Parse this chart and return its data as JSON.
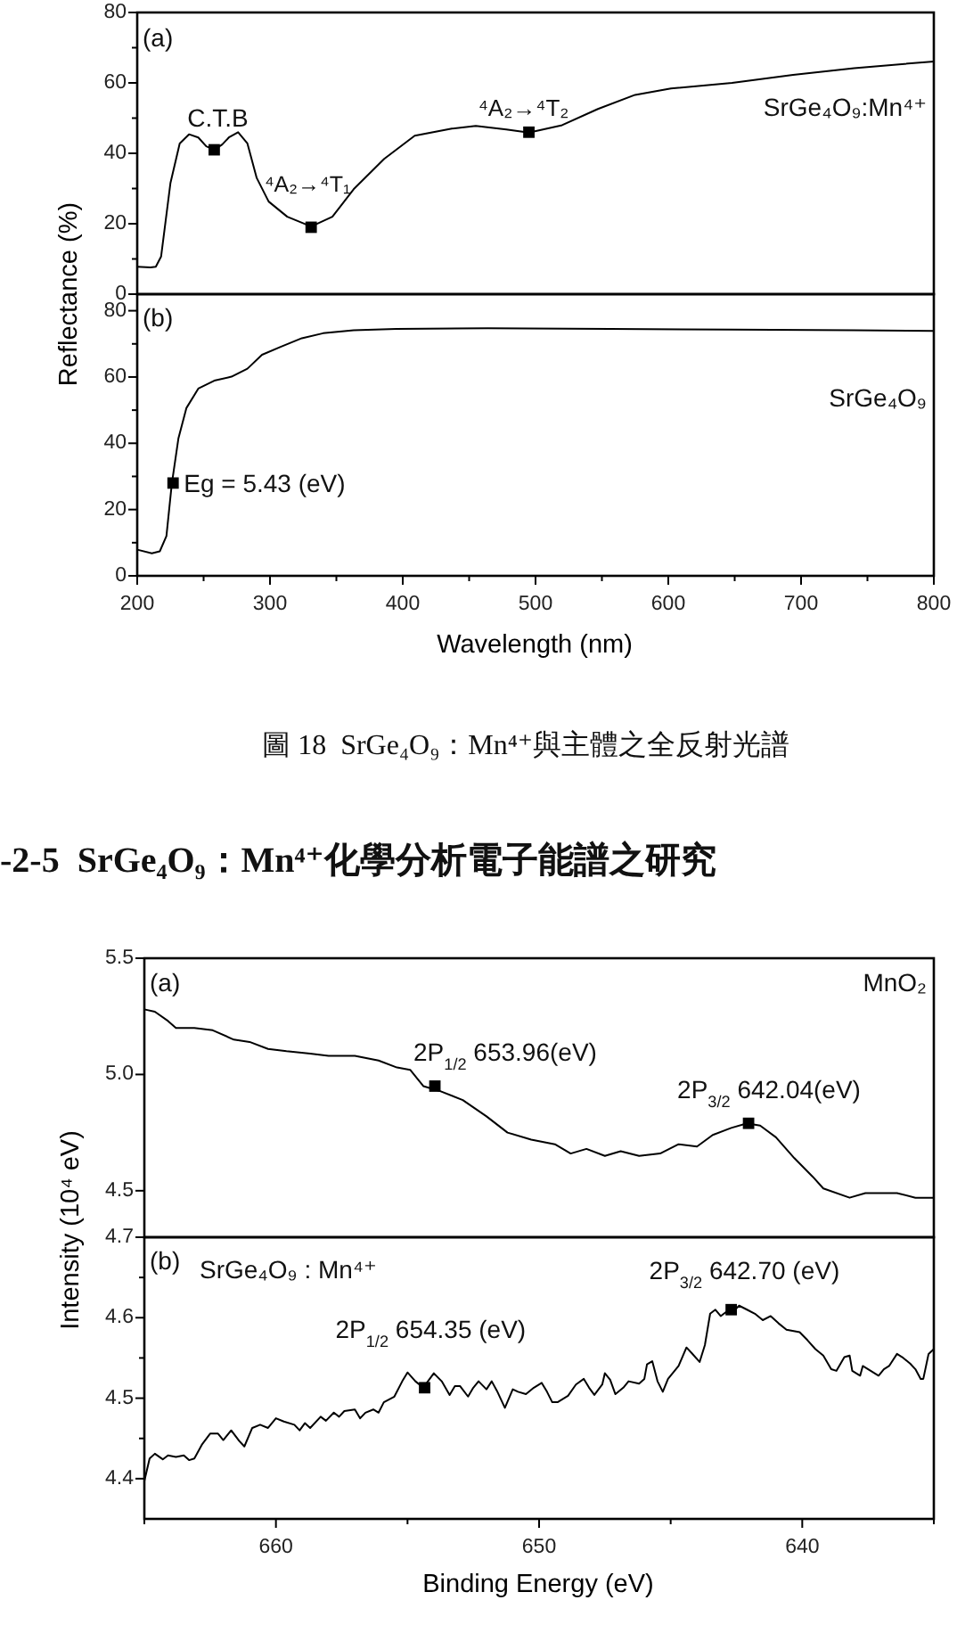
{
  "chart_data": [
    {
      "type": "line",
      "ylabel": "Reflectance (%)",
      "annotations": [
        "(a)",
        {
          "text": "C.T.B",
          "x": 258,
          "y": 41
        },
        {
          "text": "⁴A₂→⁴T₁",
          "x": 331,
          "y": 19
        },
        {
          "text": "⁴A₂→⁴T₂",
          "x": 495,
          "y": 46
        },
        "SrGe₄O₉:Mn⁴⁺"
      ],
      "series": [
        {
          "color": "#000000",
          "x": [
            200,
            210,
            214,
            218,
            225,
            232,
            239,
            246,
            252,
            258,
            264,
            269,
            276,
            283,
            290,
            299,
            313,
            331,
            347,
            363,
            386,
            409,
            437,
            455,
            478,
            495,
            520,
            547,
            575,
            602,
            648,
            694,
            740,
            800
          ],
          "values": [
            7.8,
            7.6,
            7.8,
            10.7,
            31.5,
            42.8,
            45.4,
            44.5,
            42,
            41,
            42.5,
            44.5,
            46,
            42.8,
            33,
            26.3,
            22,
            19.2,
            22,
            29.8,
            38.4,
            45,
            47,
            47.8,
            46.8,
            45.9,
            48,
            52.6,
            56.6,
            58.4,
            60,
            62.3,
            64.2,
            66.1
          ]
        },
        {
          "type": "scatter",
          "marker": "square",
          "color": "#000000",
          "x": [
            258,
            331,
            495
          ],
          "values": [
            41,
            19,
            46
          ]
        }
      ],
      "xlim": [
        200,
        800
      ],
      "ylim": [
        0,
        80
      ],
      "yticks": [
        0,
        {
          "value": 10,
          "label": null
        },
        20,
        {
          "value": 30,
          "label": null
        },
        40,
        {
          "value": 50,
          "label": null
        },
        60,
        {
          "value": 70,
          "label": null
        },
        80
      ],
      "tick_labels": "y"
    },
    {
      "type": "line",
      "xlabel": "Wavelength (nm)",
      "annotations": [
        "(b)",
        {
          "text": "Eg = 5.43 (eV)",
          "x": 227,
          "y": 28
        },
        "SrGe₄O₉",
        "圖 18  SrGe₄O₉：Mn⁴⁺與主體之全反射光譜"
      ],
      "series": [
        {
          "color": "#000000",
          "x": [
            200,
            211,
            217,
            222,
            226,
            231,
            237,
            246,
            258,
            271,
            283,
            294,
            308,
            324,
            340,
            363,
            395,
            464,
            556,
            648,
            740,
            800
          ],
          "values": [
            7.9,
            6.8,
            7.4,
            12,
            27.6,
            41.4,
            50.6,
            56.5,
            58.9,
            60.1,
            62.5,
            66.7,
            69.1,
            71.7,
            73.2,
            74.1,
            74.5,
            74.7,
            74.5,
            74.3,
            74.1,
            73.9
          ]
        },
        {
          "type": "scatter",
          "marker": "square",
          "color": "#000000",
          "x": [
            227
          ],
          "values": [
            28
          ]
        }
      ],
      "xlim": [
        200,
        800
      ],
      "xticks": [
        200,
        {
          "value": 250,
          "label": null
        },
        300,
        {
          "value": 350,
          "label": null
        },
        400,
        {
          "value": 450,
          "label": null
        },
        500,
        {
          "value": 550,
          "label": null
        },
        600,
        {
          "value": 650,
          "label": null
        },
        700,
        {
          "value": 750,
          "label": null
        },
        800
      ],
      "ylim": [
        0,
        85
      ],
      "yticks": [
        0,
        {
          "value": 10,
          "label": null
        },
        20,
        {
          "value": 30,
          "label": null
        },
        40,
        {
          "value": 50,
          "label": null
        },
        60,
        {
          "value": 70,
          "label": null
        },
        80
      ]
    },
    {
      "type": "line",
      "ylabel": "Intensity (10⁴ eV)",
      "annotations": [
        "-2-5  SrGe₄O₉：Mn⁴⁺化學分析電子能譜之研究",
        "(a)",
        "MnO₂",
        {
          "text": "2P$_{1/2}$ 653.96(eV)",
          "x": 653.96,
          "y": 4.95
        },
        {
          "text": "2P$_{3/2}$ 642.04(eV)",
          "x": 642.04,
          "y": 4.79
        }
      ],
      "series": [
        {
          "color": "#000000",
          "x": [
            665,
            664.6,
            664.1,
            663.8,
            663.1,
            662.4,
            661.6,
            661,
            660.3,
            659.6,
            658.7,
            658,
            657,
            656.1,
            655.4,
            654.9,
            654.4,
            653.8,
            652.9,
            652,
            651.2,
            650.3,
            649.4,
            648.8,
            648.2,
            647.5,
            646.9,
            646.2,
            645.4,
            644.7,
            644,
            643.4,
            642.7,
            642.1,
            641.6,
            641,
            640.3,
            639.6,
            639.2,
            638.2,
            637.6,
            636.4,
            635.7,
            635
          ],
          "values": [
            5.28,
            5.27,
            5.23,
            5.2,
            5.2,
            5.19,
            5.15,
            5.14,
            5.11,
            5.1,
            5.09,
            5.08,
            5.08,
            5.06,
            5.03,
            5.02,
            4.95,
            4.93,
            4.89,
            4.82,
            4.75,
            4.72,
            4.7,
            4.66,
            4.68,
            4.65,
            4.67,
            4.65,
            4.66,
            4.7,
            4.69,
            4.74,
            4.77,
            4.79,
            4.78,
            4.73,
            4.64,
            4.56,
            4.51,
            4.47,
            4.49,
            4.49,
            4.47,
            4.47
          ]
        },
        {
          "type": "scatter",
          "marker": "square",
          "color": "#000000",
          "x": [
            653.96,
            642.04
          ],
          "values": [
            4.95,
            4.79
          ]
        }
      ],
      "xlim": [
        665,
        635
      ],
      "ylim": [
        4.3,
        5.5
      ],
      "yticks": [
        4.5,
        {
          "value": 5,
          "label": "5.0"
        },
        5.5
      ],
      "tick_labels": "y"
    },
    {
      "type": "line",
      "xlabel": "Binding Energy (eV)",
      "annotations": [
        "(b)",
        "SrGe₄O₉ : Mn⁴⁺",
        {
          "text": "2P$_{1/2}$ 654.35 (eV)",
          "x": 654.35,
          "y": 4.513
        },
        {
          "text": "2P$_{3/2}$ 642.70 (eV)",
          "x": 642.7,
          "y": 4.61
        }
      ],
      "series": [
        {
          "color": "#000000",
          "x": [
            665,
            664.8,
            664.6,
            664.3,
            664.1,
            663.8,
            663.5,
            663.3,
            663.1,
            662.8,
            662.5,
            662.2,
            662,
            661.7,
            661.4,
            661.2,
            660.9,
            660.6,
            660.3,
            660,
            659.7,
            659.3,
            659.1,
            658.9,
            658.7,
            658.3,
            658.1,
            657.8,
            657.6,
            657.4,
            657,
            656.8,
            656.6,
            656.3,
            656.1,
            655.9,
            655.5,
            655.2,
            655,
            654.7,
            654.4,
            654.2,
            654,
            653.7,
            653.4,
            653.2,
            653,
            652.7,
            652.5,
            652.3,
            652,
            651.8,
            651.6,
            651.3,
            651,
            650.8,
            650.5,
            650.2,
            649.9,
            649.7,
            649.5,
            649.3,
            648.9,
            648.6,
            648.3,
            648.1,
            647.9,
            647.6,
            647.5,
            647.3,
            647.1,
            646.8,
            646.6,
            646.2,
            646,
            645.9,
            645.7,
            645.5,
            645.3,
            645.1,
            644.7,
            644.4,
            644.2,
            643.9,
            643.7,
            643.5,
            643.3,
            643.1,
            642.9,
            642.7,
            642.4,
            642.1,
            641.8,
            641.5,
            641.2,
            640.9,
            640.6,
            640.1,
            639.8,
            639.5,
            639.2,
            638.9,
            638.7,
            638.4,
            638.2,
            638.1,
            637.8,
            637.7,
            637.4,
            637.1,
            636.9,
            636.7,
            636.4,
            636.2,
            635.9,
            635.7,
            635.5,
            635.4,
            635.2,
            635
          ],
          "values": [
            4.397,
            4.425,
            4.431,
            4.424,
            4.429,
            4.427,
            4.429,
            4.423,
            4.425,
            4.443,
            4.456,
            4.456,
            4.448,
            4.46,
            4.447,
            4.44,
            4.463,
            4.467,
            4.463,
            4.475,
            4.471,
            4.467,
            4.46,
            4.469,
            4.463,
            4.477,
            4.472,
            4.482,
            4.477,
            4.484,
            4.486,
            4.475,
            4.482,
            4.486,
            4.482,
            4.495,
            4.502,
            4.521,
            4.532,
            4.521,
            4.513,
            4.522,
            4.531,
            4.521,
            4.504,
            4.515,
            4.515,
            4.502,
            4.513,
            4.521,
            4.511,
            4.521,
            4.509,
            4.488,
            4.511,
            4.508,
            4.505,
            4.513,
            4.519,
            4.508,
            4.495,
            4.495,
            4.503,
            4.517,
            4.524,
            4.513,
            4.504,
            4.517,
            4.531,
            4.523,
            4.505,
            4.513,
            4.521,
            4.518,
            4.524,
            4.542,
            4.546,
            4.521,
            4.508,
            4.524,
            4.54,
            4.563,
            4.556,
            4.545,
            4.566,
            4.605,
            4.61,
            4.602,
            4.607,
            4.605,
            4.615,
            4.61,
            4.605,
            4.597,
            4.602,
            4.593,
            4.585,
            4.582,
            4.572,
            4.561,
            4.553,
            4.536,
            4.534,
            4.551,
            4.553,
            4.534,
            4.528,
            4.54,
            4.534,
            4.528,
            4.536,
            4.54,
            4.555,
            4.551,
            4.543,
            4.536,
            4.524,
            4.524,
            4.555,
            4.561
          ]
        },
        {
          "type": "scatter",
          "marker": "square",
          "color": "#000000",
          "x": [
            654.35,
            642.7
          ],
          "values": [
            4.513,
            4.61
          ]
        }
      ],
      "xlim": [
        665,
        635
      ],
      "xticks": [
        {
          "value": 665,
          "label": null
        },
        660,
        {
          "value": 655,
          "label": null
        },
        650,
        {
          "value": 645,
          "label": null
        },
        640,
        {
          "value": 635,
          "label": null
        }
      ],
      "ylim": [
        4.35,
        4.7
      ],
      "yticks": [
        4.4,
        {
          "value": 4.45,
          "label": null
        },
        4.5,
        {
          "value": 4.55,
          "label": null
        },
        4.6,
        {
          "value": 4.65,
          "label": null
        },
        4.7
      ]
    }
  ]
}
